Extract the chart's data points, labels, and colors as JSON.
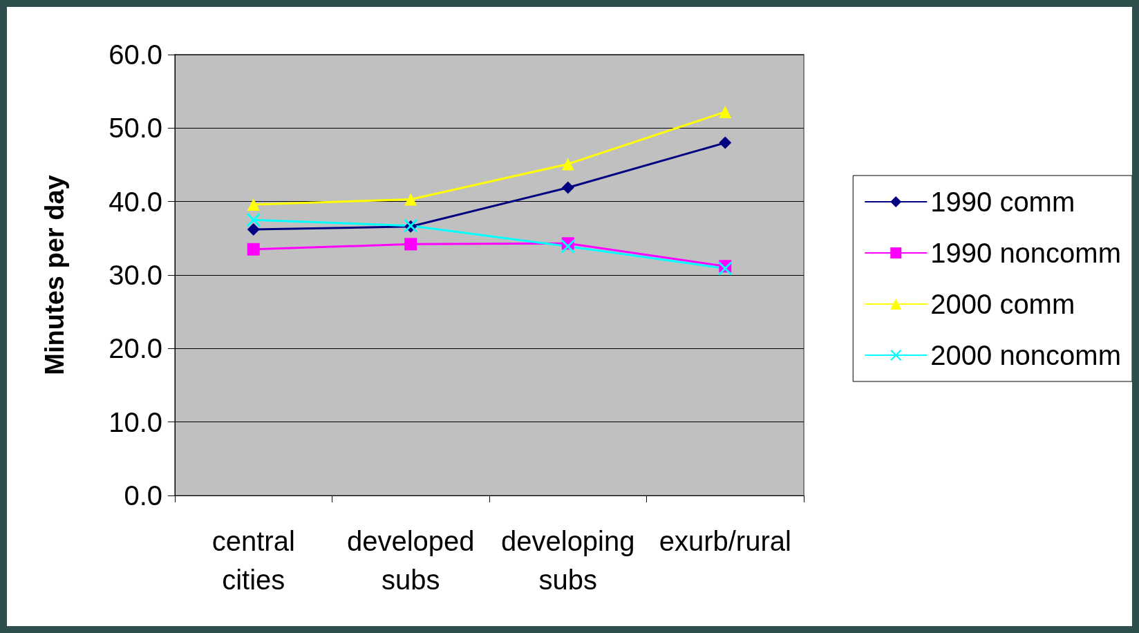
{
  "chart_data": {
    "type": "line",
    "ylabel": "Minutes per day",
    "categories": [
      "central\ncities",
      "developed\nsubs",
      "developing\nsubs",
      "exurb/rural"
    ],
    "series": [
      {
        "name": "1990 comm",
        "color": "#000080",
        "marker": "diamond",
        "values": [
          36.2,
          36.6,
          41.9,
          48.0
        ]
      },
      {
        "name": "1990 noncomm",
        "color": "#ff00ff",
        "marker": "square",
        "values": [
          33.5,
          34.2,
          34.3,
          31.2
        ]
      },
      {
        "name": "2000 comm",
        "color": "#ffff00",
        "marker": "triangle",
        "values": [
          39.6,
          40.3,
          45.1,
          52.2
        ]
      },
      {
        "name": "2000 noncomm",
        "color": "#00ffff",
        "marker": "cross",
        "values": [
          37.5,
          36.7,
          33.9,
          30.9
        ]
      }
    ],
    "ylim": [
      0,
      60
    ],
    "yticks": [
      {
        "value": 0,
        "label": "0.0"
      },
      {
        "value": 10,
        "label": "10.0"
      },
      {
        "value": 20,
        "label": "20.0"
      },
      {
        "value": 30,
        "label": "30.0"
      },
      {
        "value": 40,
        "label": "40.0"
      },
      {
        "value": 50,
        "label": "50.0"
      },
      {
        "value": 60,
        "label": "60.0"
      }
    ],
    "grid": "y",
    "legend": "right",
    "line_style": "solid"
  }
}
